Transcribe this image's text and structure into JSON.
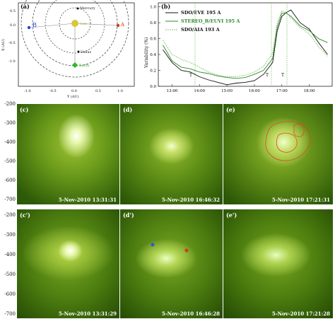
{
  "panel_a": {
    "label": "(a)",
    "xlabel": "Y (AU)",
    "ylabel": "X (AU)",
    "xticks": [
      "-1.0",
      "-0.5",
      "0.0",
      "0.5",
      "1.0"
    ],
    "yticks": [
      "0.5",
      "0.0",
      "-0.5",
      "-1.0"
    ],
    "bodies": {
      "mercury": "Mercury",
      "venus": "Venus",
      "earth": "Earth",
      "sun": "Sun",
      "stereo_b": "B",
      "stereo_a": "A"
    },
    "colors": {
      "sun": "#d8c83a",
      "earth": "#22bb22",
      "stereo_b": "#2244dd",
      "stereo_a": "#dd3311"
    }
  },
  "panel_b": {
    "label": "(b)",
    "ylabel": "Variability (%)",
    "yticks": [
      "1.0",
      "0.8",
      "0.6",
      "0.4",
      "0.2",
      "0.0"
    ],
    "xticks": [
      "13:00",
      "14:00",
      "15:00",
      "16:00",
      "17:00",
      "18:00"
    ],
    "legend": [
      {
        "name": "SDO/EVE 195 A",
        "color": "#111111",
        "style": "solid"
      },
      {
        "name": "STEREO_B/EUVI 195 A",
        "color": "#2e8b2e",
        "style": "solid"
      },
      {
        "name": "SDO/AIA 193 A",
        "color": "#6ab34a",
        "style": "dotted"
      }
    ],
    "markers": [
      "T",
      "T",
      "T"
    ]
  },
  "chart_data": {
    "type": "line",
    "ylabel": "Variability (%)",
    "xlabel": "",
    "ylim": [
      0,
      1.05
    ],
    "x": [
      "12:40",
      "13:00",
      "13:20",
      "13:40",
      "14:00",
      "14:20",
      "14:40",
      "15:00",
      "15:20",
      "15:40",
      "16:00",
      "16:20",
      "16:40",
      "16:50",
      "17:00",
      "17:10",
      "17:20",
      "17:40",
      "18:00",
      "18:20",
      "18:40"
    ],
    "series": [
      {
        "name": "SDO/EVE 195 A",
        "values": [
          0.46,
          0.3,
          0.2,
          0.18,
          0.12,
          0.08,
          0.05,
          0.02,
          0.04,
          0.05,
          0.07,
          0.15,
          0.3,
          0.7,
          0.88,
          0.93,
          0.96,
          0.8,
          0.72,
          0.55,
          0.4
        ]
      },
      {
        "name": "STEREO_B/EUVI 195 A",
        "values": [
          0.52,
          0.32,
          0.24,
          0.22,
          0.18,
          0.16,
          0.13,
          0.11,
          0.1,
          0.11,
          0.15,
          0.2,
          0.35,
          0.75,
          0.92,
          0.92,
          0.88,
          0.76,
          0.7,
          0.6,
          0.55
        ]
      },
      {
        "name": "SDO/AIA 193 A",
        "values": [
          0.58,
          0.4,
          0.34,
          0.3,
          0.24,
          0.18,
          0.14,
          0.12,
          0.12,
          0.14,
          0.18,
          0.25,
          0.42,
          0.8,
          0.95,
          0.93,
          0.86,
          0.74,
          0.66,
          0.5,
          0.38
        ]
      }
    ]
  },
  "images": {
    "row1_yticks": [
      "-200",
      "-300",
      "-400",
      "-500",
      "-600",
      "-700"
    ],
    "row2_yticks": [
      "-200",
      "-300",
      "-400",
      "-500",
      "-600",
      "-700"
    ],
    "panels": [
      {
        "label": "(c)",
        "time": "5-Nov-2010 13:31:31"
      },
      {
        "label": "(d)",
        "time": "5-Nov-2010 16:46:32"
      },
      {
        "label": "(e)",
        "time": "5-Nov-2010 17:21:31"
      },
      {
        "label": "(c')",
        "time": "5-Nov-2010 13:31:29"
      },
      {
        "label": "(d')",
        "time": "5-Nov-2010 16:46:28"
      },
      {
        "label": "(e')",
        "time": "5-Nov-2010 17:21:28"
      }
    ]
  }
}
